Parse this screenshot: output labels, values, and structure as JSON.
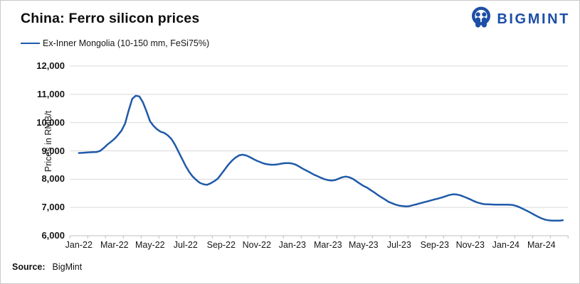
{
  "header": {
    "title": "China: Ferro silicon prices"
  },
  "logo": {
    "text": "BIGMINT",
    "color": "#1d4fa6"
  },
  "source": {
    "prefix": "Source:",
    "value": "BigMint"
  },
  "chart_data": {
    "type": "line",
    "title": "China: Ferro silicon prices",
    "grid": "horizontal",
    "legend_position": "top-left",
    "x_axis": {
      "unit": "months (Jan-22 = first month, through Apr-24)",
      "range_months": [
        0,
        28
      ],
      "tick_every_months": 1,
      "labels": [
        "Jan-22",
        "Mar-22",
        "May-22",
        "Jul-22",
        "Sep-22",
        "Nov-22",
        "Jan-23",
        "Mar-23",
        "May-23",
        "Jul-23",
        "Sep-23",
        "Nov-23",
        "Jan-24",
        "Mar-24"
      ],
      "label_positions_months": [
        0.5,
        2.5,
        4.5,
        6.5,
        8.5,
        10.5,
        12.5,
        14.5,
        16.5,
        18.5,
        20.5,
        22.5,
        24.5,
        26.5
      ]
    },
    "y_axis": {
      "label": "Prices in RMB/t",
      "min": 6000,
      "max": 12000,
      "tick_step": 1000,
      "tick_labels": [
        "6,000",
        "7,000",
        "8,000",
        "9,000",
        "10,000",
        "11,000",
        "12,000"
      ]
    },
    "series": [
      {
        "name": "Ex-Inner Mongolia (10-150 mm, FeSi75%)",
        "color": "#1f5aa9",
        "t_start_months": 0.5,
        "t_step_months": 0.2,
        "values": [
          8925,
          8930,
          8940,
          8950,
          8955,
          8960,
          9000,
          9100,
          9220,
          9320,
          9425,
          9560,
          9720,
          9970,
          10425,
          10840,
          10950,
          10925,
          10720,
          10400,
          10050,
          9880,
          9760,
          9675,
          9635,
          9550,
          9425,
          9220,
          8970,
          8720,
          8470,
          8260,
          8090,
          7970,
          7870,
          7820,
          7800,
          7850,
          7925,
          8010,
          8175,
          8340,
          8510,
          8650,
          8760,
          8840,
          8865,
          8840,
          8785,
          8715,
          8650,
          8600,
          8550,
          8525,
          8510,
          8510,
          8525,
          8550,
          8565,
          8565,
          8550,
          8510,
          8440,
          8365,
          8300,
          8235,
          8165,
          8110,
          8050,
          8000,
          7965,
          7950,
          7965,
          8015,
          8065,
          8090,
          8065,
          8010,
          7925,
          7840,
          7760,
          7700,
          7615,
          7535,
          7440,
          7360,
          7285,
          7200,
          7150,
          7100,
          7065,
          7050,
          7035,
          7050,
          7085,
          7115,
          7150,
          7185,
          7215,
          7250,
          7285,
          7315,
          7350,
          7390,
          7435,
          7460,
          7460,
          7435,
          7390,
          7340,
          7285,
          7225,
          7175,
          7140,
          7115,
          7110,
          7105,
          7100,
          7100,
          7100,
          7100,
          7095,
          7085,
          7050,
          7000,
          6940,
          6875,
          6810,
          6740,
          6675,
          6615,
          6570,
          6545,
          6535,
          6535,
          6535,
          6545
        ]
      }
    ]
  }
}
